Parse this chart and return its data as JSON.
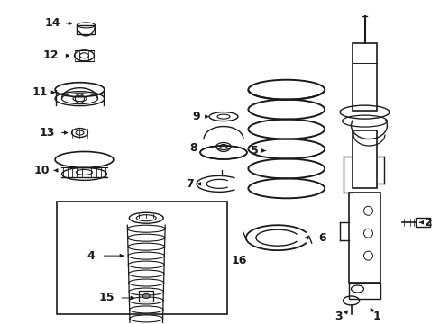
{
  "bg_color": "#ffffff",
  "line_color": "#1a1a1a",
  "title_fontsize": 6.5,
  "label_fontsize": 9,
  "label_fontsize_small": 8
}
